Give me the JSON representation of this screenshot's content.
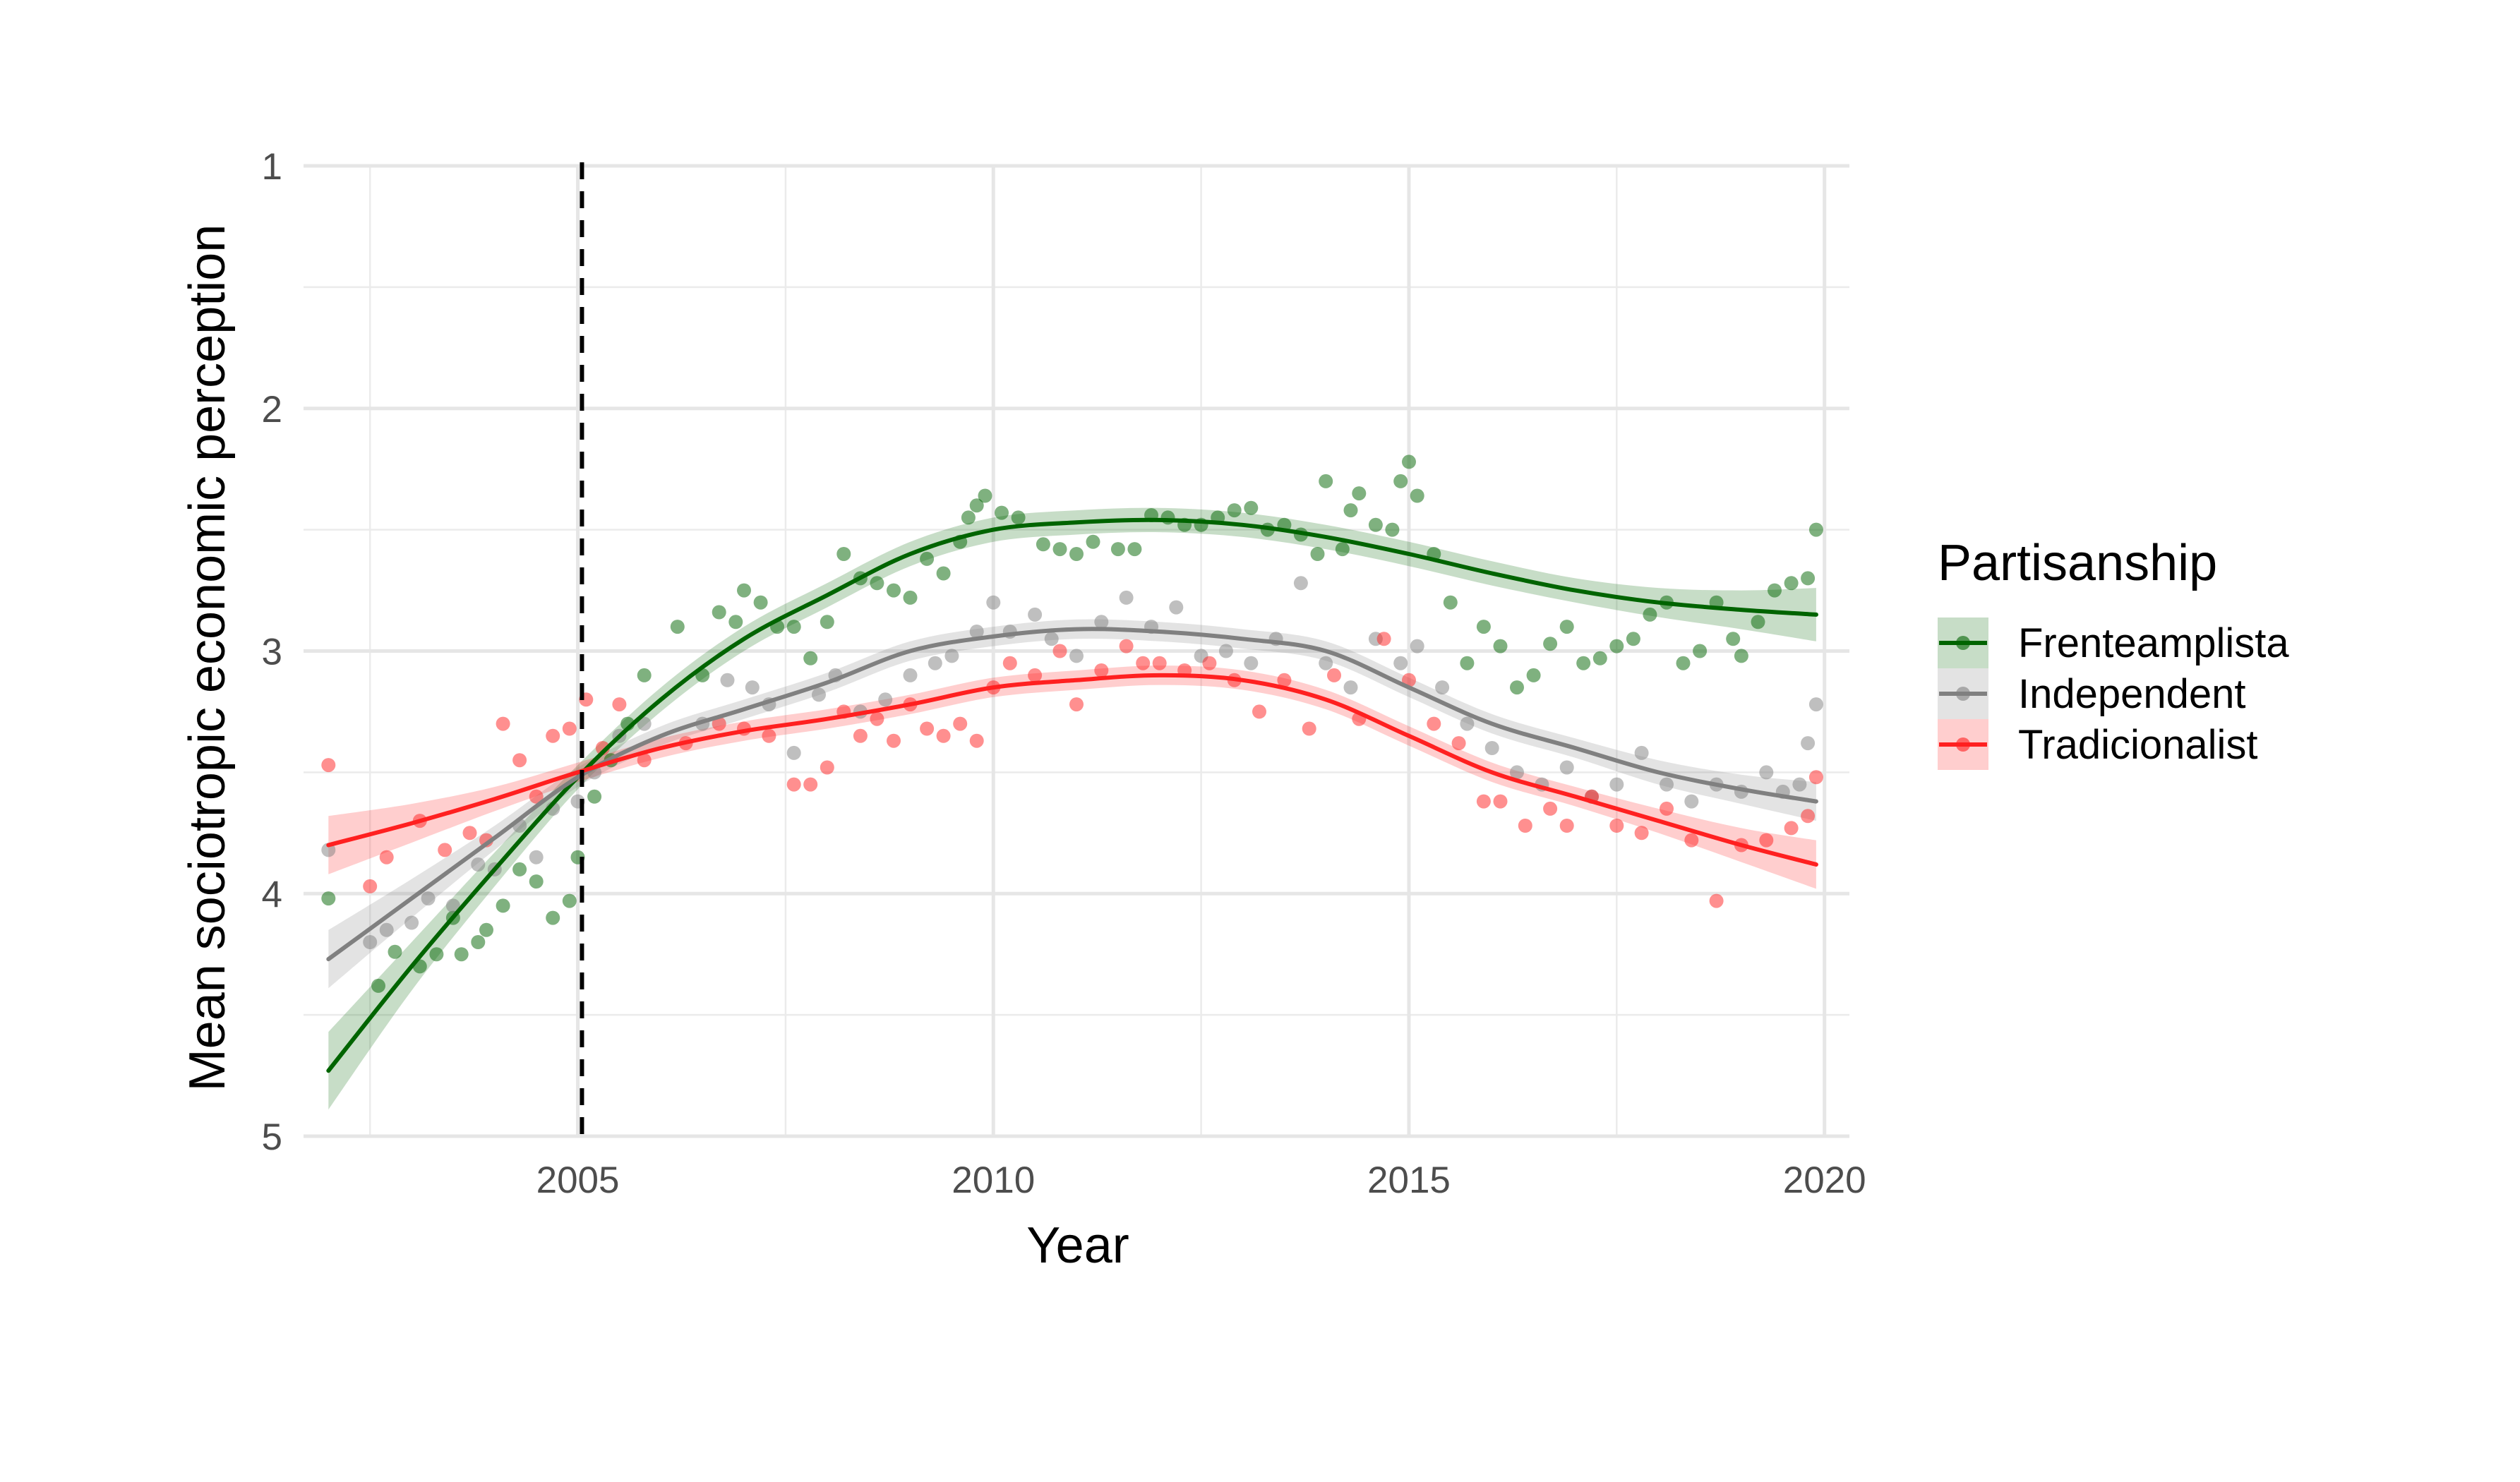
{
  "chart_data": {
    "type": "scatter",
    "title": "",
    "xlabel": "Year",
    "ylabel": "Mean sociotropic economic perception",
    "xlim": [
      2001.7,
      2020.3
    ],
    "ylim": [
      1,
      5
    ],
    "y_reversed": true,
    "x_ticks": [
      2005,
      2010,
      2015,
      2020
    ],
    "y_ticks": [
      1,
      2,
      3,
      4,
      5
    ],
    "grid": true,
    "reference_line": {
      "x": 2005.05,
      "style": "dashed",
      "color": "#000000"
    },
    "legend": {
      "title": "Partisanship",
      "position": "right"
    },
    "series": [
      {
        "name": "Frenteamplista",
        "color": "#006400",
        "smooth": {
          "x": [
            2002,
            2003,
            2004,
            2005,
            2006,
            2007,
            2008,
            2009,
            2010,
            2011,
            2012,
            2013,
            2014,
            2015,
            2016,
            2017,
            2018,
            2019,
            2019.9
          ],
          "y": [
            4.73,
            4.3,
            3.9,
            3.52,
            3.2,
            2.95,
            2.77,
            2.6,
            2.5,
            2.47,
            2.46,
            2.48,
            2.53,
            2.6,
            2.68,
            2.75,
            2.8,
            2.83,
            2.85
          ],
          "ci_half": [
            0.16,
            0.1,
            0.07,
            0.05,
            0.05,
            0.05,
            0.05,
            0.05,
            0.05,
            0.05,
            0.05,
            0.05,
            0.05,
            0.05,
            0.05,
            0.05,
            0.06,
            0.08,
            0.11
          ]
        },
        "points": [
          [
            2002.0,
            4.02
          ],
          [
            2002.6,
            4.38
          ],
          [
            2002.8,
            4.24
          ],
          [
            2003.1,
            4.3
          ],
          [
            2003.3,
            4.25
          ],
          [
            2003.5,
            4.1
          ],
          [
            2003.6,
            4.25
          ],
          [
            2003.8,
            4.2
          ],
          [
            2003.9,
            4.15
          ],
          [
            2004.1,
            4.05
          ],
          [
            2004.3,
            3.9
          ],
          [
            2004.5,
            3.95
          ],
          [
            2004.7,
            4.1
          ],
          [
            2004.9,
            4.03
          ],
          [
            2005.0,
            3.85
          ],
          [
            2005.2,
            3.6
          ],
          [
            2005.4,
            3.45
          ],
          [
            2005.6,
            3.3
          ],
          [
            2005.8,
            3.1
          ],
          [
            2006.2,
            2.9
          ],
          [
            2006.5,
            3.1
          ],
          [
            2006.7,
            2.84
          ],
          [
            2006.9,
            2.88
          ],
          [
            2007.0,
            2.75
          ],
          [
            2007.2,
            2.8
          ],
          [
            2007.4,
            2.9
          ],
          [
            2007.6,
            2.9
          ],
          [
            2007.8,
            3.03
          ],
          [
            2008.0,
            2.88
          ],
          [
            2008.2,
            2.6
          ],
          [
            2008.4,
            2.7
          ],
          [
            2008.6,
            2.72
          ],
          [
            2008.8,
            2.75
          ],
          [
            2009.0,
            2.78
          ],
          [
            2009.2,
            2.62
          ],
          [
            2009.4,
            2.68
          ],
          [
            2009.6,
            2.55
          ],
          [
            2009.7,
            2.45
          ],
          [
            2009.8,
            2.4
          ],
          [
            2009.9,
            2.36
          ],
          [
            2010.1,
            2.43
          ],
          [
            2010.3,
            2.45
          ],
          [
            2010.6,
            2.56
          ],
          [
            2010.8,
            2.58
          ],
          [
            2011.0,
            2.6
          ],
          [
            2011.2,
            2.55
          ],
          [
            2011.5,
            2.58
          ],
          [
            2011.7,
            2.58
          ],
          [
            2011.9,
            2.44
          ],
          [
            2012.1,
            2.45
          ],
          [
            2012.3,
            2.48
          ],
          [
            2012.5,
            2.48
          ],
          [
            2012.7,
            2.45
          ],
          [
            2012.9,
            2.42
          ],
          [
            2013.1,
            2.41
          ],
          [
            2013.3,
            2.5
          ],
          [
            2013.5,
            2.48
          ],
          [
            2013.7,
            2.52
          ],
          [
            2013.9,
            2.6
          ],
          [
            2014.0,
            2.3
          ],
          [
            2014.2,
            2.58
          ],
          [
            2014.3,
            2.42
          ],
          [
            2014.4,
            2.35
          ],
          [
            2014.6,
            2.48
          ],
          [
            2014.8,
            2.5
          ],
          [
            2014.9,
            2.3
          ],
          [
            2015.0,
            2.22
          ],
          [
            2015.1,
            2.36
          ],
          [
            2015.3,
            2.6
          ],
          [
            2015.5,
            2.8
          ],
          [
            2015.7,
            3.05
          ],
          [
            2015.9,
            2.9
          ],
          [
            2016.1,
            2.98
          ],
          [
            2016.3,
            3.15
          ],
          [
            2016.5,
            3.1
          ],
          [
            2016.7,
            2.97
          ],
          [
            2016.9,
            2.9
          ],
          [
            2017.1,
            3.05
          ],
          [
            2017.3,
            3.03
          ],
          [
            2017.5,
            2.98
          ],
          [
            2017.7,
            2.95
          ],
          [
            2017.9,
            2.85
          ],
          [
            2018.1,
            2.8
          ],
          [
            2018.3,
            3.05
          ],
          [
            2018.5,
            3.0
          ],
          [
            2018.7,
            2.8
          ],
          [
            2018.9,
            2.95
          ],
          [
            2019.0,
            3.02
          ],
          [
            2019.2,
            2.88
          ],
          [
            2019.4,
            2.75
          ],
          [
            2019.6,
            2.72
          ],
          [
            2019.8,
            2.7
          ],
          [
            2019.9,
            2.5
          ]
        ]
      },
      {
        "name": "Independent",
        "color": "#808080",
        "smooth": {
          "x": [
            2002,
            2003,
            2004,
            2005,
            2006,
            2007,
            2008,
            2009,
            2010,
            2011,
            2012,
            2013,
            2014,
            2015,
            2016,
            2017,
            2018,
            2019,
            2019.9
          ],
          "y": [
            4.27,
            4.02,
            3.77,
            3.52,
            3.35,
            3.24,
            3.13,
            3.0,
            2.94,
            2.91,
            2.92,
            2.95,
            3.0,
            3.15,
            3.3,
            3.4,
            3.5,
            3.57,
            3.62
          ],
          "ci_half": [
            0.12,
            0.08,
            0.05,
            0.04,
            0.04,
            0.04,
            0.04,
            0.04,
            0.04,
            0.04,
            0.04,
            0.04,
            0.04,
            0.04,
            0.04,
            0.04,
            0.05,
            0.06,
            0.08
          ]
        },
        "points": [
          [
            2002.0,
            3.82
          ],
          [
            2002.5,
            4.2
          ],
          [
            2002.7,
            4.15
          ],
          [
            2003.0,
            4.12
          ],
          [
            2003.2,
            4.02
          ],
          [
            2003.5,
            4.05
          ],
          [
            2003.8,
            3.88
          ],
          [
            2004.0,
            3.9
          ],
          [
            2004.3,
            3.72
          ],
          [
            2004.5,
            3.85
          ],
          [
            2004.7,
            3.65
          ],
          [
            2005.0,
            3.62
          ],
          [
            2005.2,
            3.5
          ],
          [
            2005.5,
            3.35
          ],
          [
            2005.8,
            3.3
          ],
          [
            2006.5,
            3.3
          ],
          [
            2006.8,
            3.12
          ],
          [
            2007.1,
            3.15
          ],
          [
            2007.3,
            3.22
          ],
          [
            2007.6,
            3.42
          ],
          [
            2007.9,
            3.18
          ],
          [
            2008.1,
            3.1
          ],
          [
            2008.4,
            3.25
          ],
          [
            2008.7,
            3.2
          ],
          [
            2009.0,
            3.1
          ],
          [
            2009.3,
            3.05
          ],
          [
            2009.5,
            3.02
          ],
          [
            2009.8,
            2.92
          ],
          [
            2010.0,
            2.8
          ],
          [
            2010.2,
            2.92
          ],
          [
            2010.5,
            2.85
          ],
          [
            2010.7,
            2.95
          ],
          [
            2011.0,
            3.02
          ],
          [
            2011.3,
            2.88
          ],
          [
            2011.6,
            2.78
          ],
          [
            2011.9,
            2.9
          ],
          [
            2012.2,
            2.82
          ],
          [
            2012.5,
            3.02
          ],
          [
            2012.8,
            3.0
          ],
          [
            2013.1,
            3.05
          ],
          [
            2013.4,
            2.95
          ],
          [
            2013.7,
            2.72
          ],
          [
            2014.0,
            3.05
          ],
          [
            2014.3,
            3.15
          ],
          [
            2014.6,
            2.95
          ],
          [
            2014.9,
            3.05
          ],
          [
            2015.1,
            2.98
          ],
          [
            2015.4,
            3.15
          ],
          [
            2015.7,
            3.3
          ],
          [
            2016.0,
            3.4
          ],
          [
            2016.3,
            3.5
          ],
          [
            2016.6,
            3.55
          ],
          [
            2016.9,
            3.48
          ],
          [
            2017.2,
            3.6
          ],
          [
            2017.5,
            3.55
          ],
          [
            2017.8,
            3.42
          ],
          [
            2018.1,
            3.55
          ],
          [
            2018.4,
            3.62
          ],
          [
            2018.7,
            3.55
          ],
          [
            2019.0,
            3.58
          ],
          [
            2019.3,
            3.5
          ],
          [
            2019.5,
            3.58
          ],
          [
            2019.7,
            3.55
          ],
          [
            2019.8,
            3.38
          ],
          [
            2019.9,
            3.22
          ]
        ]
      },
      {
        "name": "Tradicionalist",
        "color": "#ff2020",
        "smooth": {
          "x": [
            2002,
            2003,
            2004,
            2005,
            2006,
            2007,
            2008,
            2009,
            2010,
            2011,
            2012,
            2013,
            2014,
            2015,
            2016,
            2017,
            2018,
            2019,
            2019.9
          ],
          "y": [
            3.8,
            3.71,
            3.61,
            3.5,
            3.4,
            3.33,
            3.28,
            3.22,
            3.15,
            3.12,
            3.1,
            3.12,
            3.2,
            3.35,
            3.5,
            3.6,
            3.7,
            3.8,
            3.88
          ],
          "ci_half": [
            0.12,
            0.08,
            0.05,
            0.04,
            0.04,
            0.04,
            0.04,
            0.04,
            0.04,
            0.04,
            0.04,
            0.04,
            0.04,
            0.04,
            0.04,
            0.04,
            0.05,
            0.07,
            0.1
          ]
        },
        "points": [
          [
            2002.0,
            3.47
          ],
          [
            2002.5,
            3.97
          ],
          [
            2002.7,
            3.85
          ],
          [
            2003.1,
            3.7
          ],
          [
            2003.4,
            3.82
          ],
          [
            2003.7,
            3.75
          ],
          [
            2003.9,
            3.78
          ],
          [
            2004.1,
            3.3
          ],
          [
            2004.3,
            3.45
          ],
          [
            2004.5,
            3.6
          ],
          [
            2004.7,
            3.35
          ],
          [
            2004.9,
            3.32
          ],
          [
            2005.1,
            3.2
          ],
          [
            2005.3,
            3.4
          ],
          [
            2005.5,
            3.22
          ],
          [
            2005.8,
            3.45
          ],
          [
            2006.3,
            3.38
          ],
          [
            2006.7,
            3.3
          ],
          [
            2007.0,
            3.32
          ],
          [
            2007.3,
            3.35
          ],
          [
            2007.6,
            3.55
          ],
          [
            2007.8,
            3.55
          ],
          [
            2008.0,
            3.48
          ],
          [
            2008.2,
            3.25
          ],
          [
            2008.4,
            3.35
          ],
          [
            2008.6,
            3.28
          ],
          [
            2008.8,
            3.37
          ],
          [
            2009.0,
            3.22
          ],
          [
            2009.2,
            3.32
          ],
          [
            2009.4,
            3.35
          ],
          [
            2009.6,
            3.3
          ],
          [
            2009.8,
            3.37
          ],
          [
            2010.0,
            3.15
          ],
          [
            2010.2,
            3.05
          ],
          [
            2010.5,
            3.1
          ],
          [
            2010.8,
            3.0
          ],
          [
            2011.0,
            3.22
          ],
          [
            2011.3,
            3.08
          ],
          [
            2011.6,
            2.98
          ],
          [
            2011.8,
            3.05
          ],
          [
            2012.0,
            3.05
          ],
          [
            2012.3,
            3.08
          ],
          [
            2012.6,
            3.05
          ],
          [
            2012.9,
            3.12
          ],
          [
            2013.2,
            3.25
          ],
          [
            2013.5,
            3.12
          ],
          [
            2013.8,
            3.32
          ],
          [
            2014.1,
            3.1
          ],
          [
            2014.4,
            3.28
          ],
          [
            2014.7,
            2.95
          ],
          [
            2015.0,
            3.12
          ],
          [
            2015.3,
            3.3
          ],
          [
            2015.6,
            3.38
          ],
          [
            2015.9,
            3.62
          ],
          [
            2016.1,
            3.62
          ],
          [
            2016.4,
            3.72
          ],
          [
            2016.7,
            3.65
          ],
          [
            2016.9,
            3.72
          ],
          [
            2017.2,
            3.6
          ],
          [
            2017.5,
            3.72
          ],
          [
            2017.8,
            3.75
          ],
          [
            2018.1,
            3.65
          ],
          [
            2018.4,
            3.78
          ],
          [
            2018.7,
            4.03
          ],
          [
            2019.0,
            3.8
          ],
          [
            2019.3,
            3.78
          ],
          [
            2019.6,
            3.73
          ],
          [
            2019.8,
            3.68
          ],
          [
            2019.9,
            3.52
          ]
        ]
      }
    ]
  }
}
